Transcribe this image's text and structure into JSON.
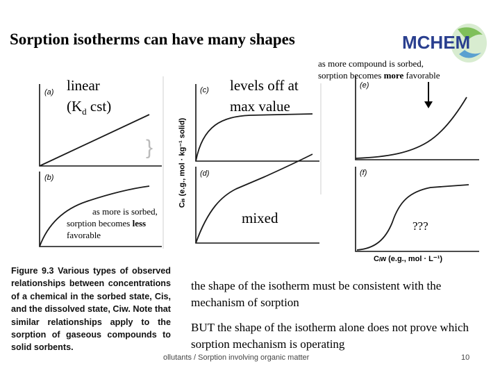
{
  "slide": {
    "title": "Sorption isotherms can have many shapes",
    "logo_text": "MCHEM"
  },
  "labels": {
    "linear_line1": "linear",
    "linear_line2_main": "(K",
    "linear_line2_sub": "d",
    "linear_line2_end": " cst)",
    "levels_line1": "levels off at",
    "levels_line2": "max value",
    "more_favorable_line1": "as more compound is sorbed,",
    "more_favorable_prefix": "sorption becomes ",
    "more_favorable_bold": "more",
    "more_favorable_suffix": " favorable",
    "less_favorable_line1": "as more is sorbed,",
    "less_favorable_prefix": "sorption becomes ",
    "less_favorable_bold": "less",
    "less_favorable_suffix": "favorable",
    "mixed": "mixed",
    "unknown": "???"
  },
  "figure": {
    "panels": [
      "(a)",
      "(b)",
      "(c)",
      "(d)",
      "(e)",
      "(f)"
    ],
    "y_axis_label": "Cᵢₛ (e.g., mol · kg⁻¹ solid)",
    "x_axis_label": "Cᵢw (e.g., mol · L⁻¹)",
    "caption": "Figure 9.3 Various types of observed relationships between concentrations of a chemical in the sorbed state, Cis, and the dissolved state, Ciw. Note that similar relationships apply to the sorption of gaseous compounds to solid sorbents."
  },
  "notes": {
    "consistent": "the shape of the isotherm must be consistent with the mechanism of sorption",
    "but": "BUT the shape of the isotherm alone does not prove which sorption mechanism is operating"
  },
  "footer": {
    "text": "ollutants / Sorption involving organic matter",
    "page": "10"
  },
  "colors": {
    "title": "#000000",
    "logo": "#2a3f8f",
    "curve": "#1a1a1a"
  }
}
